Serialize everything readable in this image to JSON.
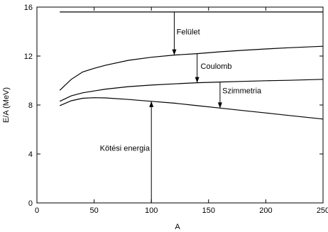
{
  "chart_data": {
    "type": "line",
    "title": "",
    "xlabel": "A",
    "ylabel": "E/A (MeV)",
    "xlim": [
      0,
      250
    ],
    "ylim": [
      0,
      16
    ],
    "xticks": [
      0,
      50,
      100,
      150,
      200,
      250
    ],
    "yticks": [
      0,
      4,
      8,
      12,
      16
    ],
    "grid": false,
    "legend": "none",
    "line_color": "#000000",
    "series": [
      {
        "x": [
          20,
          250
        ],
        "values": [
          15.6,
          15.6
        ]
      },
      {
        "x": [
          20,
          30,
          40,
          50,
          60,
          80,
          100,
          120,
          140,
          160,
          180,
          200,
          220,
          250
        ],
        "values": [
          9.2,
          10.1,
          10.7,
          11.0,
          11.25,
          11.65,
          11.9,
          12.08,
          12.2,
          12.35,
          12.47,
          12.58,
          12.68,
          12.8
        ]
      },
      {
        "x": [
          20,
          30,
          40,
          50,
          60,
          80,
          100,
          120,
          140,
          160,
          180,
          200,
          220,
          250
        ],
        "values": [
          8.3,
          8.75,
          9.0,
          9.15,
          9.3,
          9.5,
          9.63,
          9.73,
          9.82,
          9.88,
          9.93,
          9.98,
          10.02,
          10.1
        ]
      },
      {
        "x": [
          20,
          30,
          40,
          50,
          60,
          80,
          100,
          120,
          140,
          160,
          180,
          200,
          220,
          250
        ],
        "values": [
          7.95,
          8.35,
          8.55,
          8.6,
          8.58,
          8.45,
          8.3,
          8.15,
          7.95,
          7.75,
          7.55,
          7.35,
          7.15,
          6.85
        ]
      }
    ],
    "annotations": [
      {
        "text": "Felület",
        "x": 120,
        "from": 15.6,
        "to": 12.08,
        "label_x": 122,
        "label_y": 14.0
      },
      {
        "text": "Coulomb",
        "x": 140,
        "from": 12.2,
        "to": 9.82,
        "label_x": 143,
        "label_y": 11.2
      },
      {
        "text": "Szimmetria",
        "x": 160,
        "from": 9.88,
        "to": 7.75,
        "label_x": 162,
        "label_y": 9.2
      },
      {
        "text": "Kötési energia",
        "x": 100,
        "from": 0,
        "to": 8.3,
        "label_x": 55,
        "label_y": 4.5
      }
    ]
  }
}
